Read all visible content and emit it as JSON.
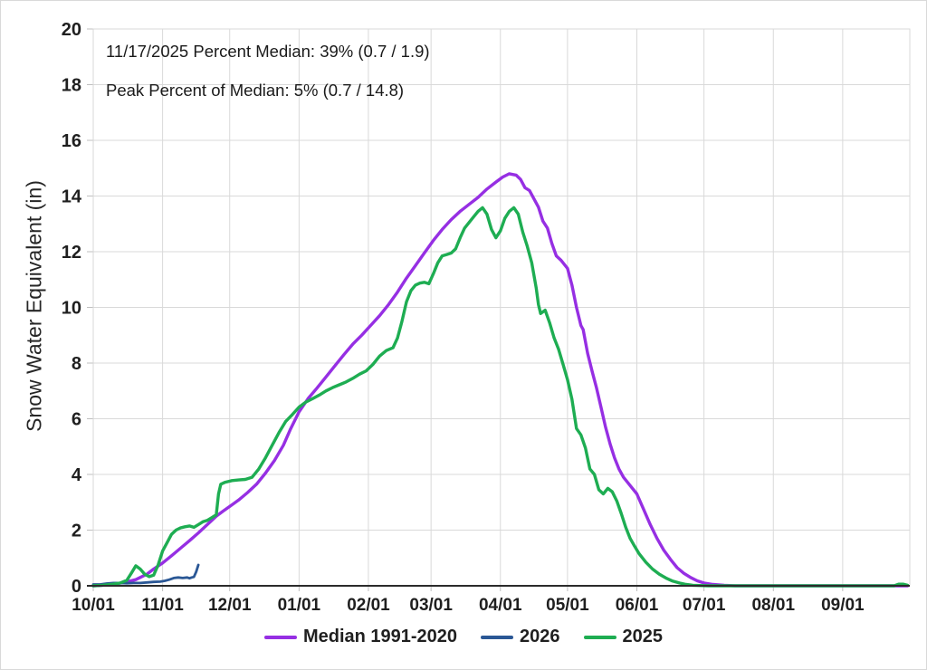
{
  "chart_data": {
    "type": "line",
    "title": "",
    "ylabel": "Snow Water Equivalent (in)",
    "xlabel": "",
    "ylim": [
      0,
      20
    ],
    "ytick_step": 2,
    "grid": true,
    "legend_position": "bottom",
    "x_tick_labels": [
      "10/01",
      "11/01",
      "12/01",
      "01/01",
      "02/01",
      "03/01",
      "04/01",
      "05/01",
      "06/01",
      "07/01",
      "08/01",
      "09/01"
    ],
    "annotations": [
      "11/17/2025 Percent Median: 39% (0.7 / 1.9)",
      "Peak Percent of Median: 5% (0.7 / 14.8)"
    ],
    "colors": {
      "grid": "#D9D9D9",
      "tick": "#BFBFBF",
      "axis": "#2B2B2B",
      "text": "#1F1F1F",
      "median": "#962FE3",
      "y2026": "#2A5795",
      "y2025": "#1EAD52"
    },
    "legend": [
      {
        "key": "median-1991-2020",
        "label": "Median 1991-2020",
        "color": "#962FE3"
      },
      {
        "key": "2026",
        "label": "2026",
        "color": "#2A5795"
      },
      {
        "key": "2025",
        "label": "2025",
        "color": "#1EAD52"
      }
    ],
    "series": [
      {
        "key": "median-1991-2020",
        "name": "Median 1991-2020",
        "color": "#962FE3",
        "width": 3.4,
        "points": [
          [
            "10-01",
            0
          ],
          [
            "10-05",
            0.02
          ],
          [
            "10-10",
            0.06
          ],
          [
            "10-15",
            0.12
          ],
          [
            "10-20",
            0.22
          ],
          [
            "10-25",
            0.42
          ],
          [
            "10-28",
            0.6
          ],
          [
            "11-01",
            0.82
          ],
          [
            "11-05",
            1.08
          ],
          [
            "11-09",
            1.35
          ],
          [
            "11-13",
            1.62
          ],
          [
            "11-17",
            1.9
          ],
          [
            "11-21",
            2.2
          ],
          [
            "11-25",
            2.5
          ],
          [
            "11-28",
            2.68
          ],
          [
            "12-01",
            2.85
          ],
          [
            "12-05",
            3.08
          ],
          [
            "12-09",
            3.35
          ],
          [
            "12-13",
            3.65
          ],
          [
            "12-17",
            4.05
          ],
          [
            "12-21",
            4.5
          ],
          [
            "12-25",
            5.05
          ],
          [
            "12-28",
            5.6
          ],
          [
            "01-01",
            6.25
          ],
          [
            "01-05",
            6.72
          ],
          [
            "01-09",
            7.1
          ],
          [
            "01-13",
            7.5
          ],
          [
            "01-17",
            7.9
          ],
          [
            "01-21",
            8.3
          ],
          [
            "01-25",
            8.68
          ],
          [
            "01-29",
            9.0
          ],
          [
            "02-02",
            9.35
          ],
          [
            "02-06",
            9.7
          ],
          [
            "02-10",
            10.1
          ],
          [
            "02-14",
            10.55
          ],
          [
            "02-18",
            11.05
          ],
          [
            "02-22",
            11.5
          ],
          [
            "02-26",
            11.95
          ],
          [
            "03-02",
            12.4
          ],
          [
            "03-06",
            12.8
          ],
          [
            "03-10",
            13.15
          ],
          [
            "03-14",
            13.45
          ],
          [
            "03-18",
            13.7
          ],
          [
            "03-22",
            13.95
          ],
          [
            "03-26",
            14.25
          ],
          [
            "03-30",
            14.5
          ],
          [
            "04-02",
            14.68
          ],
          [
            "04-05",
            14.8
          ],
          [
            "04-08",
            14.75
          ],
          [
            "04-10",
            14.6
          ],
          [
            "04-12",
            14.3
          ],
          [
            "04-14",
            14.2
          ],
          [
            "04-16",
            13.9
          ],
          [
            "04-18",
            13.6
          ],
          [
            "04-20",
            13.1
          ],
          [
            "04-22",
            12.85
          ],
          [
            "04-24",
            12.3
          ],
          [
            "04-26",
            11.85
          ],
          [
            "04-28",
            11.7
          ],
          [
            "05-01",
            11.4
          ],
          [
            "05-03",
            10.8
          ],
          [
            "05-05",
            10.0
          ],
          [
            "05-07",
            9.35
          ],
          [
            "05-08",
            9.2
          ],
          [
            "05-10",
            8.35
          ],
          [
            "05-12",
            7.7
          ],
          [
            "05-14",
            7.1
          ],
          [
            "05-16",
            6.4
          ],
          [
            "05-18",
            5.7
          ],
          [
            "05-20",
            5.1
          ],
          [
            "05-22",
            4.6
          ],
          [
            "05-24",
            4.2
          ],
          [
            "05-26",
            3.9
          ],
          [
            "05-29",
            3.6
          ],
          [
            "06-01",
            3.3
          ],
          [
            "06-04",
            2.75
          ],
          [
            "06-07",
            2.2
          ],
          [
            "06-10",
            1.7
          ],
          [
            "06-13",
            1.28
          ],
          [
            "06-16",
            0.95
          ],
          [
            "06-19",
            0.65
          ],
          [
            "06-22",
            0.45
          ],
          [
            "06-25",
            0.3
          ],
          [
            "06-28",
            0.18
          ],
          [
            "07-01",
            0.1
          ],
          [
            "07-05",
            0.05
          ],
          [
            "07-10",
            0.02
          ],
          [
            "07-15",
            0
          ],
          [
            "08-01",
            0
          ],
          [
            "09-01",
            0
          ],
          [
            "09-30",
            0
          ]
        ]
      },
      {
        "key": "2026",
        "name": "2026",
        "color": "#2A5795",
        "width": 2.8,
        "points": [
          [
            "10-01",
            0.05
          ],
          [
            "10-04",
            0.05
          ],
          [
            "10-07",
            0.08
          ],
          [
            "10-10",
            0.1
          ],
          [
            "10-13",
            0.1
          ],
          [
            "10-16",
            0.09
          ],
          [
            "10-19",
            0.1
          ],
          [
            "10-22",
            0.1
          ],
          [
            "10-25",
            0.12
          ],
          [
            "10-28",
            0.14
          ],
          [
            "10-31",
            0.15
          ],
          [
            "11-02",
            0.18
          ],
          [
            "11-04",
            0.22
          ],
          [
            "11-06",
            0.28
          ],
          [
            "11-08",
            0.3
          ],
          [
            "11-10",
            0.28
          ],
          [
            "11-12",
            0.3
          ],
          [
            "11-13",
            0.27
          ],
          [
            "11-14",
            0.3
          ],
          [
            "11-15",
            0.32
          ],
          [
            "11-16",
            0.5
          ],
          [
            "11-17",
            0.75
          ]
        ]
      },
      {
        "key": "2025",
        "name": "2025",
        "color": "#1EAD52",
        "width": 3.4,
        "points": [
          [
            "10-01",
            0
          ],
          [
            "10-05",
            0.02
          ],
          [
            "10-09",
            0.05
          ],
          [
            "10-13",
            0.1
          ],
          [
            "10-16",
            0.2
          ],
          [
            "10-18",
            0.45
          ],
          [
            "10-20",
            0.72
          ],
          [
            "10-22",
            0.6
          ],
          [
            "10-24",
            0.42
          ],
          [
            "10-26",
            0.33
          ],
          [
            "10-28",
            0.38
          ],
          [
            "10-30",
            0.75
          ],
          [
            "11-01",
            1.25
          ],
          [
            "11-03",
            1.55
          ],
          [
            "11-05",
            1.85
          ],
          [
            "11-07",
            2.0
          ],
          [
            "11-09",
            2.08
          ],
          [
            "11-11",
            2.12
          ],
          [
            "11-13",
            2.15
          ],
          [
            "11-15",
            2.1
          ],
          [
            "11-17",
            2.2
          ],
          [
            "11-19",
            2.3
          ],
          [
            "11-21",
            2.35
          ],
          [
            "11-23",
            2.45
          ],
          [
            "11-25",
            2.55
          ],
          [
            "11-26",
            3.3
          ],
          [
            "11-27",
            3.65
          ],
          [
            "11-29",
            3.72
          ],
          [
            "12-02",
            3.78
          ],
          [
            "12-05",
            3.8
          ],
          [
            "12-08",
            3.82
          ],
          [
            "12-11",
            3.9
          ],
          [
            "12-14",
            4.2
          ],
          [
            "12-17",
            4.6
          ],
          [
            "12-20",
            5.05
          ],
          [
            "12-23",
            5.5
          ],
          [
            "12-26",
            5.9
          ],
          [
            "12-29",
            6.15
          ],
          [
            "01-01",
            6.42
          ],
          [
            "01-04",
            6.6
          ],
          [
            "01-07",
            6.72
          ],
          [
            "01-10",
            6.85
          ],
          [
            "01-13",
            7.0
          ],
          [
            "01-16",
            7.12
          ],
          [
            "01-19",
            7.22
          ],
          [
            "01-22",
            7.32
          ],
          [
            "01-25",
            7.45
          ],
          [
            "01-28",
            7.6
          ],
          [
            "01-31",
            7.72
          ],
          [
            "02-03",
            7.95
          ],
          [
            "02-06",
            8.25
          ],
          [
            "02-09",
            8.45
          ],
          [
            "02-12",
            8.55
          ],
          [
            "02-14",
            8.9
          ],
          [
            "02-16",
            9.5
          ],
          [
            "02-18",
            10.2
          ],
          [
            "02-20",
            10.6
          ],
          [
            "02-22",
            10.8
          ],
          [
            "02-24",
            10.87
          ],
          [
            "02-26",
            10.9
          ],
          [
            "02-28",
            10.85
          ],
          [
            "03-02",
            11.2
          ],
          [
            "03-04",
            11.6
          ],
          [
            "03-06",
            11.85
          ],
          [
            "03-08",
            11.9
          ],
          [
            "03-10",
            11.95
          ],
          [
            "03-12",
            12.1
          ],
          [
            "03-14",
            12.5
          ],
          [
            "03-16",
            12.85
          ],
          [
            "03-18",
            13.05
          ],
          [
            "03-20",
            13.25
          ],
          [
            "03-22",
            13.45
          ],
          [
            "03-24",
            13.58
          ],
          [
            "03-26",
            13.35
          ],
          [
            "03-28",
            12.8
          ],
          [
            "03-30",
            12.5
          ],
          [
            "04-01",
            12.75
          ],
          [
            "04-03",
            13.2
          ],
          [
            "04-05",
            13.45
          ],
          [
            "04-07",
            13.58
          ],
          [
            "04-09",
            13.35
          ],
          [
            "04-11",
            12.7
          ],
          [
            "04-13",
            12.2
          ],
          [
            "04-15",
            11.6
          ],
          [
            "04-17",
            10.7
          ],
          [
            "04-18",
            10.1
          ],
          [
            "04-19",
            9.78
          ],
          [
            "04-21",
            9.9
          ],
          [
            "04-23",
            9.45
          ],
          [
            "04-25",
            8.9
          ],
          [
            "04-27",
            8.5
          ],
          [
            "04-29",
            7.95
          ],
          [
            "05-01",
            7.4
          ],
          [
            "05-03",
            6.7
          ],
          [
            "05-05",
            5.65
          ],
          [
            "05-07",
            5.42
          ],
          [
            "05-09",
            4.95
          ],
          [
            "05-11",
            4.2
          ],
          [
            "05-13",
            4.0
          ],
          [
            "05-15",
            3.45
          ],
          [
            "05-17",
            3.3
          ],
          [
            "05-19",
            3.5
          ],
          [
            "05-21",
            3.38
          ],
          [
            "05-23",
            3.05
          ],
          [
            "05-25",
            2.6
          ],
          [
            "05-27",
            2.1
          ],
          [
            "05-29",
            1.7
          ],
          [
            "05-31",
            1.42
          ],
          [
            "06-02",
            1.15
          ],
          [
            "06-05",
            0.85
          ],
          [
            "06-08",
            0.6
          ],
          [
            "06-11",
            0.42
          ],
          [
            "06-14",
            0.28
          ],
          [
            "06-17",
            0.17
          ],
          [
            "06-20",
            0.1
          ],
          [
            "06-23",
            0.05
          ],
          [
            "06-26",
            0.02
          ],
          [
            "06-29",
            0.01
          ],
          [
            "07-03",
            0
          ],
          [
            "08-01",
            0
          ],
          [
            "09-01",
            0
          ],
          [
            "09-24",
            0
          ],
          [
            "09-26",
            0.06
          ],
          [
            "09-28",
            0.06
          ],
          [
            "09-30",
            0.02
          ]
        ]
      }
    ]
  }
}
